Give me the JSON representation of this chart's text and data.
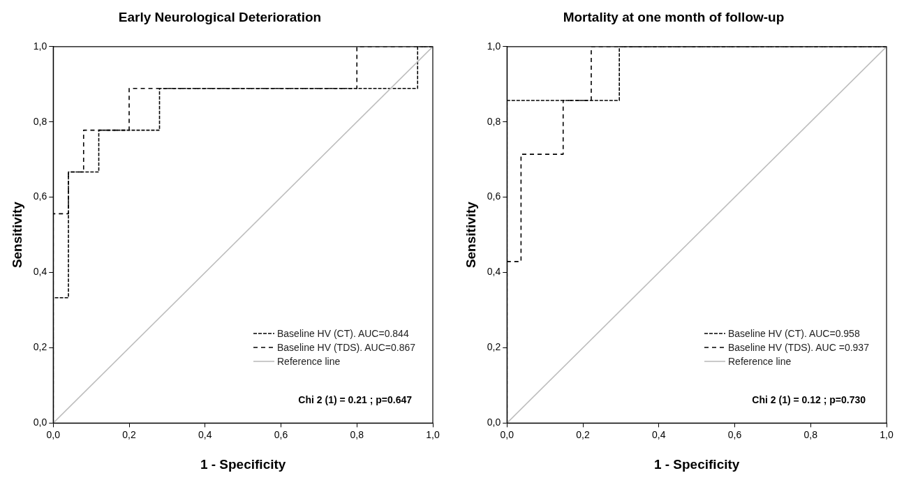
{
  "chart_data": [
    {
      "type": "line",
      "title": "Early Neurological Deterioration",
      "xlabel": "1 - Specificity",
      "ylabel": "Sensitivity",
      "xlim": [
        0,
        1
      ],
      "ylim": [
        0,
        1
      ],
      "xticks": [
        {
          "value": 0,
          "label": "0,0"
        },
        {
          "value": 0.2,
          "label": "0,2"
        },
        {
          "value": 0.4,
          "label": "0,4"
        },
        {
          "value": 0.6,
          "label": "0,6"
        },
        {
          "value": 0.8,
          "label": "0,8"
        },
        {
          "value": 1,
          "label": "1,0"
        }
      ],
      "yticks": [
        {
          "value": 0,
          "label": "0,0"
        },
        {
          "value": 0.2,
          "label": "0,2"
        },
        {
          "value": 0.4,
          "label": "0,4"
        },
        {
          "value": 0.6,
          "label": "0,6"
        },
        {
          "value": 0.8,
          "label": "0,8"
        },
        {
          "value": 1,
          "label": "1,0"
        }
      ],
      "grid": false,
      "legend": "bottom right",
      "annotations": [
        "Chi 2 (1) = 0.21 ; p=0.647"
      ],
      "series": [
        {
          "name": "Baseline HV (CT). AUC=0.844",
          "color": "#000000",
          "line_style": "dashed",
          "x": [
            0,
            0,
            0.04,
            0.04,
            0.12,
            0.12,
            0.28,
            0.28,
            0.96,
            0.96,
            1
          ],
          "values": [
            0,
            0.333,
            0.333,
            0.667,
            0.667,
            0.778,
            0.778,
            0.889,
            0.889,
            1,
            1
          ]
        },
        {
          "name": "Baseline HV (TDS). AUC=0.867",
          "color": "#000000",
          "line_style": "dashed",
          "x": [
            0,
            0,
            0.04,
            0.04,
            0.08,
            0.08,
            0.2,
            0.2,
            0.8,
            0.8,
            1
          ],
          "values": [
            0,
            0.556,
            0.556,
            0.667,
            0.667,
            0.778,
            0.778,
            0.889,
            0.889,
            1,
            1
          ]
        },
        {
          "name": "Reference line",
          "color": "#bdbdbd",
          "line_style": "solid",
          "x": [
            0,
            1
          ],
          "values": [
            0,
            1
          ]
        }
      ]
    },
    {
      "type": "line",
      "title": "Mortality at one month of follow-up",
      "xlabel": "1 - Specificity",
      "ylabel": "Sensitivity",
      "xlim": [
        0,
        1
      ],
      "ylim": [
        0,
        1
      ],
      "xticks": [
        {
          "value": 0,
          "label": "0,0"
        },
        {
          "value": 0.2,
          "label": "0,2"
        },
        {
          "value": 0.4,
          "label": "0,4"
        },
        {
          "value": 0.6,
          "label": "0,6"
        },
        {
          "value": 0.8,
          "label": "0,8"
        },
        {
          "value": 1,
          "label": "1,0"
        }
      ],
      "yticks": [
        {
          "value": 0,
          "label": "0,0"
        },
        {
          "value": 0.2,
          "label": "0,2"
        },
        {
          "value": 0.4,
          "label": "0,4"
        },
        {
          "value": 0.6,
          "label": "0,6"
        },
        {
          "value": 0.8,
          "label": "0,8"
        },
        {
          "value": 1,
          "label": "1,0"
        }
      ],
      "grid": false,
      "legend": "bottom right",
      "annotations": [
        "Chi 2 (1) = 0.12 ; p=0.730"
      ],
      "series": [
        {
          "name": "Baseline HV (CT). AUC=0.958",
          "color": "#000000",
          "line_style": "dashed",
          "x": [
            0,
            0,
            0.296,
            0.296,
            1
          ],
          "values": [
            0,
            0.857,
            0.857,
            1,
            1
          ]
        },
        {
          "name": "Baseline HV (TDS). AUC =0.937",
          "color": "#000000",
          "line_style": "dashed",
          "x": [
            0,
            0,
            0.037,
            0.037,
            0.148,
            0.148,
            0.222,
            0.222,
            1
          ],
          "values": [
            0,
            0.429,
            0.429,
            0.714,
            0.714,
            0.857,
            0.857,
            1,
            1
          ]
        },
        {
          "name": "Reference line",
          "color": "#bdbdbd",
          "line_style": "solid",
          "x": [
            0,
            1
          ],
          "values": [
            0,
            1
          ]
        }
      ]
    }
  ]
}
